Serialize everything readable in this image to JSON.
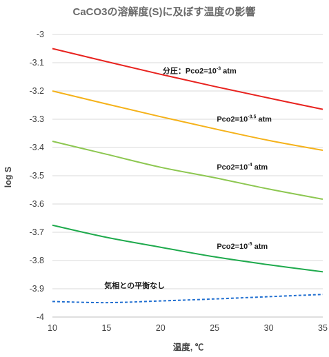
{
  "chart_data": {
    "type": "line",
    "title": "CaCO3の溶解度(S)に及ぼす温度の影響",
    "xlabel": "温度, ℃",
    "ylabel": "log S",
    "xlim": [
      10,
      35
    ],
    "ylim": [
      -4,
      -3
    ],
    "x_ticks": [
      10,
      15,
      20,
      25,
      30,
      35
    ],
    "y_ticks": [
      -3,
      -3.1,
      -3.2,
      -3.3,
      -3.4,
      -3.5,
      -3.6,
      -3.7,
      -3.8,
      -3.9,
      -4
    ],
    "grid": "horizontal",
    "legend": "none",
    "x": [
      10,
      15,
      20,
      25,
      30,
      35
    ],
    "series": [
      {
        "color": "#e8231f",
        "style": "solid",
        "values": [
          -3.05,
          -3.096,
          -3.141,
          -3.184,
          -3.225,
          -3.265
        ]
      },
      {
        "color": "#f5b21a",
        "style": "solid",
        "values": [
          -3.2,
          -3.246,
          -3.291,
          -3.334,
          -3.375,
          -3.41
        ]
      },
      {
        "color": "#8dc751",
        "style": "solid",
        "values": [
          -3.378,
          -3.424,
          -3.47,
          -3.507,
          -3.547,
          -3.583
        ]
      },
      {
        "color": "#1faa4d",
        "style": "solid",
        "values": [
          -3.675,
          -3.718,
          -3.753,
          -3.787,
          -3.815,
          -3.84
        ]
      },
      {
        "color": "#1f6ed0",
        "style": "dashed",
        "values": [
          -3.945,
          -3.949,
          -3.943,
          -3.936,
          -3.928,
          -3.92
        ]
      }
    ],
    "annotations": [
      {
        "prefix": "分圧：Pco2=10",
        "sup": "-3",
        "suffix": " atm",
        "x": 20.2,
        "y": -3.138
      },
      {
        "prefix": "Pco2=10",
        "sup": "-3.5",
        "suffix": " atm",
        "x": 25.2,
        "y": -3.308
      },
      {
        "prefix": "Pco2=10",
        "sup": "-4",
        "suffix": " atm",
        "x": 25.2,
        "y": -3.478
      },
      {
        "prefix": "Pco2=10",
        "sup": "-5",
        "suffix": " atm",
        "x": 25.2,
        "y": -3.758
      },
      {
        "prefix": "気相との平衡なし",
        "sup": "",
        "suffix": "",
        "x": 14.8,
        "y": -3.898
      }
    ]
  }
}
